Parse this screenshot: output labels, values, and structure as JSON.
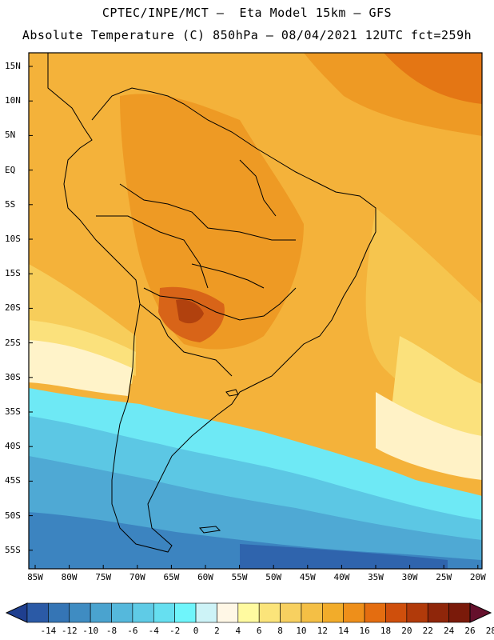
{
  "header": {
    "line1": "CPTEC/INPE/MCT –  Eta Model 15km – GFS",
    "line2": "Absolute Temperature (C) 850hPa – 08/04/2021 12UTC fct=259h"
  },
  "axes": {
    "lat_labels": [
      "15N",
      "10N",
      "5N",
      "EQ",
      "5S",
      "10S",
      "15S",
      "20S",
      "25S",
      "30S",
      "35S",
      "40S",
      "45S",
      "50S",
      "55S"
    ],
    "lon_labels": [
      "85W",
      "80W",
      "75W",
      "70W",
      "65W",
      "60W",
      "55W",
      "50W",
      "45W",
      "40W",
      "35W",
      "30W",
      "25W",
      "20W"
    ]
  },
  "colorbar": {
    "labels": [
      "-14",
      "-12",
      "-10",
      "-8",
      "-6",
      "-4",
      "-2",
      "0",
      "2",
      "4",
      "6",
      "8",
      "10",
      "12",
      "14",
      "16",
      "18",
      "20",
      "22",
      "24",
      "26",
      "28"
    ],
    "colors": [
      "#1f3f8f",
      "#2b5aa6",
      "#3575b5",
      "#3f8cc2",
      "#4aa3cf",
      "#55b8dc",
      "#5fcbe6",
      "#66dff0",
      "#6ff5fb",
      "#cdf3f7",
      "#fff7e6",
      "#fffaa0",
      "#fbe47a",
      "#f7d060",
      "#f4bf45",
      "#f2ac2a",
      "#ee8f1a",
      "#e46d10",
      "#cf4f0c",
      "#b13a0a",
      "#8f260a",
      "#7a1a0a",
      "#65102c"
    ]
  }
}
